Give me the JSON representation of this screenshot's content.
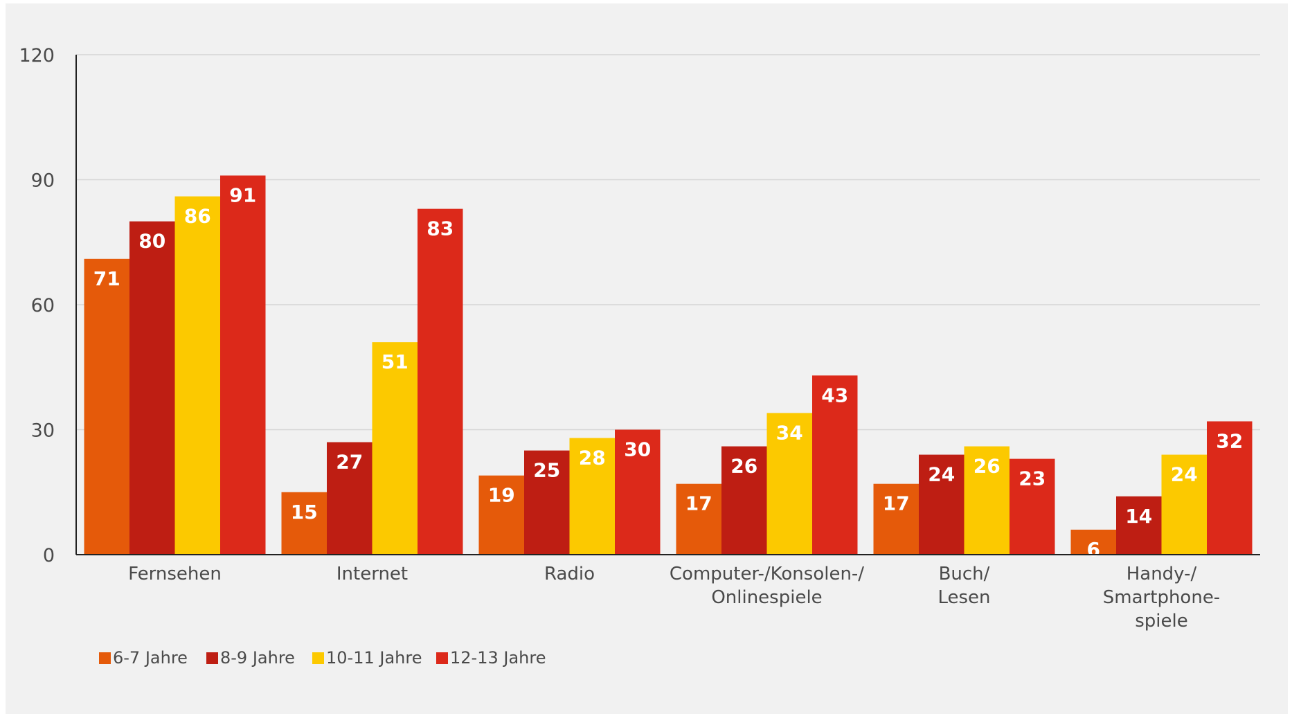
{
  "chart_data": {
    "type": "bar",
    "categories": [
      [
        "Fernsehen"
      ],
      [
        "Internet"
      ],
      [
        "Radio"
      ],
      [
        "Computer-/Konsolen-/",
        "Onlinespiele"
      ],
      [
        "Buch/",
        "Lesen"
      ],
      [
        "Handy-/",
        "Smartphone-",
        "spiele"
      ]
    ],
    "series": [
      {
        "name": "6-7 Jahre",
        "color": "#e55a0a",
        "values": [
          71,
          15,
          19,
          17,
          17,
          6
        ]
      },
      {
        "name": "8-9 Jahre",
        "color": "#be1e13",
        "values": [
          80,
          27,
          25,
          26,
          24,
          14
        ]
      },
      {
        "name": "10-11 Jahre",
        "color": "#fcc900",
        "values": [
          86,
          51,
          28,
          34,
          26,
          24
        ]
      },
      {
        "name": "12-13 Jahre",
        "color": "#dc291a",
        "values": [
          91,
          83,
          30,
          43,
          23,
          32
        ]
      }
    ],
    "ylim": [
      0,
      120
    ],
    "yticks": [
      0,
      30,
      60,
      90,
      120
    ],
    "grid": true,
    "legend_position": "bottom-left",
    "title": "",
    "xlabel": "",
    "ylabel": ""
  }
}
